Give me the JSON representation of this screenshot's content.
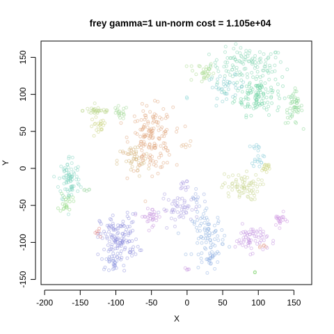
{
  "chart_data": {
    "type": "scatter",
    "title": "frey gamma=1 un-norm cost = 1.105e+04",
    "xlabel": "X",
    "ylabel": "Y",
    "xlim": [
      -205,
      175
    ],
    "ylim": [
      -157,
      172
    ],
    "xticks": [
      -200,
      -150,
      -100,
      -50,
      0,
      50,
      100,
      150
    ],
    "yticks": [
      -150,
      -100,
      -50,
      0,
      50,
      100,
      150
    ],
    "xtick_labels": [
      "-200",
      "-150",
      "-100",
      "-50",
      "0",
      "50",
      "100",
      "150"
    ],
    "ytick_labels": [
      "-150",
      "-100",
      "-50",
      "0",
      "50",
      "100",
      "150"
    ],
    "grid": false,
    "legend": "none",
    "marker": "open-circle",
    "clusters": [
      {
        "x": 85,
        "y": 140,
        "sx": 35,
        "sy": 15,
        "n": 110,
        "color": "#7fd3b0"
      },
      {
        "x": 20,
        "y": 130,
        "sx": 12,
        "sy": 10,
        "n": 30,
        "color": "#a6d98a"
      },
      {
        "x": 100,
        "y": 100,
        "sx": 22,
        "sy": 18,
        "n": 120,
        "color": "#6fd3a3"
      },
      {
        "x": 55,
        "y": 110,
        "sx": 18,
        "sy": 10,
        "n": 40,
        "color": "#79c9c9"
      },
      {
        "x": 150,
        "y": 82,
        "sx": 8,
        "sy": 15,
        "n": 45,
        "color": "#86d68f"
      },
      {
        "x": -125,
        "y": 78,
        "sx": 14,
        "sy": 4,
        "n": 30,
        "color": "#b9d68a"
      },
      {
        "x": -95,
        "y": 75,
        "sx": 8,
        "sy": 6,
        "n": 18,
        "color": "#a0d894"
      },
      {
        "x": -125,
        "y": 55,
        "sx": 8,
        "sy": 10,
        "n": 20,
        "color": "#c8d27a"
      },
      {
        "x": -50,
        "y": 40,
        "sx": 20,
        "sy": 28,
        "n": 160,
        "color": "#e0a37a"
      },
      {
        "x": -75,
        "y": 10,
        "sx": 15,
        "sy": 15,
        "n": 40,
        "color": "#d4b77e"
      },
      {
        "x": -165,
        "y": -15,
        "sx": 10,
        "sy": 22,
        "n": 80,
        "color": "#7fd4c0"
      },
      {
        "x": -170,
        "y": -45,
        "sx": 6,
        "sy": 10,
        "n": 20,
        "color": "#8ad77a"
      },
      {
        "x": 100,
        "y": 20,
        "sx": 6,
        "sy": 12,
        "n": 20,
        "color": "#7ec8d6"
      },
      {
        "x": 110,
        "y": 0,
        "sx": 6,
        "sy": 6,
        "n": 15,
        "color": "#c9d47e"
      },
      {
        "x": 75,
        "y": -25,
        "sx": 18,
        "sy": 12,
        "n": 70,
        "color": "#c6d38a"
      },
      {
        "x": -95,
        "y": -95,
        "sx": 18,
        "sy": 22,
        "n": 130,
        "color": "#8f8fde"
      },
      {
        "x": -105,
        "y": -125,
        "sx": 10,
        "sy": 8,
        "n": 30,
        "color": "#8e97e0"
      },
      {
        "x": -50,
        "y": -65,
        "sx": 10,
        "sy": 8,
        "n": 30,
        "color": "#c48fde"
      },
      {
        "x": -10,
        "y": -55,
        "sx": 18,
        "sy": 12,
        "n": 50,
        "color": "#a69ae0"
      },
      {
        "x": 30,
        "y": -90,
        "sx": 15,
        "sy": 20,
        "n": 80,
        "color": "#8bb0e0"
      },
      {
        "x": 35,
        "y": -125,
        "sx": 8,
        "sy": 10,
        "n": 20,
        "color": "#8fb0e4"
      },
      {
        "x": 90,
        "y": -95,
        "sx": 15,
        "sy": 12,
        "n": 60,
        "color": "#c28fe0"
      },
      {
        "x": 130,
        "y": -70,
        "sx": 6,
        "sy": 6,
        "n": 20,
        "color": "#cc8fe0"
      },
      {
        "x": -5,
        "y": -20,
        "sx": 5,
        "sy": 10,
        "n": 10,
        "color": "#a190e0"
      },
      {
        "x": 15,
        "y": -40,
        "sx": 8,
        "sy": 6,
        "n": 12,
        "color": "#93a7e0"
      },
      {
        "x": 0,
        "y": -140,
        "sx": 3,
        "sy": 3,
        "n": 4,
        "color": "#c48fde"
      },
      {
        "x": 95,
        "y": -140,
        "sx": 2,
        "sy": 2,
        "n": 3,
        "color": "#8ad77a"
      },
      {
        "x": -125,
        "y": -85,
        "sx": 4,
        "sy": 4,
        "n": 6,
        "color": "#e07f7f"
      },
      {
        "x": 110,
        "y": -105,
        "sx": 4,
        "sy": 4,
        "n": 5,
        "color": "#e0907f"
      },
      {
        "x": 0,
        "y": 30,
        "sx": 4,
        "sy": 4,
        "n": 6,
        "color": "#e0b07f"
      },
      {
        "x": 0,
        "y": 95,
        "sx": 2,
        "sy": 2,
        "n": 2,
        "color": "#7fd3d3"
      },
      {
        "x": -140,
        "y": -30,
        "sx": 4,
        "sy": 2,
        "n": 5,
        "color": "#9ad6a0"
      }
    ]
  }
}
